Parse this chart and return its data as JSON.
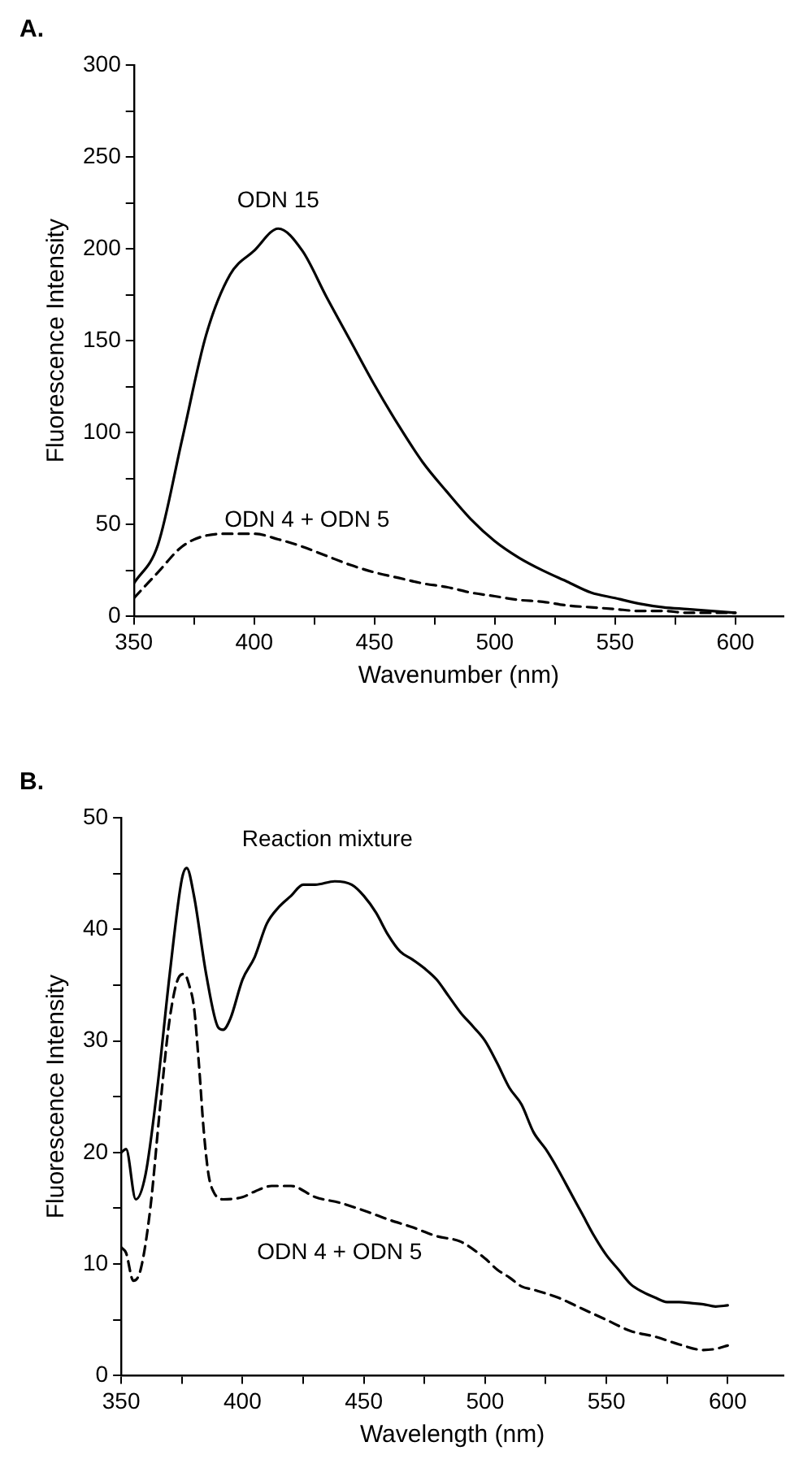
{
  "chart_data": [
    {
      "type": "line",
      "title": "A.",
      "xlabel": "Wavenumber (nm)",
      "ylabel": "Fluorescence Intensity",
      "xlim": [
        350,
        620
      ],
      "ylim": [
        0,
        300
      ],
      "xticks": [
        350,
        {
          "value": 375,
          "label": null
        },
        400,
        {
          "value": 425,
          "label": null
        },
        450,
        {
          "value": 475,
          "label": null
        },
        500,
        {
          "value": 525,
          "label": null
        },
        550,
        {
          "value": 575,
          "label": null
        },
        600
      ],
      "yticks": [
        0,
        {
          "value": 25,
          "label": null
        },
        50,
        {
          "value": 75,
          "label": null
        },
        100,
        {
          "value": 125,
          "label": null
        },
        150,
        {
          "value": 175,
          "label": null
        },
        200,
        {
          "value": 225,
          "label": null
        },
        250,
        {
          "value": 275,
          "label": null
        },
        300
      ],
      "grid": false,
      "legend": false,
      "marker": "none",
      "series": [
        {
          "name": "ODN 15",
          "color": "#000000",
          "line_style": "solid",
          "x": [
            350,
            360,
            370,
            380,
            390,
            400,
            410,
            420,
            430,
            440,
            450,
            460,
            470,
            480,
            490,
            500,
            510,
            520,
            530,
            540,
            550,
            560,
            570,
            580,
            590,
            600
          ],
          "values": [
            18,
            39,
            96,
            153,
            186,
            199,
            211,
            199,
            174,
            150,
            126,
            104,
            84,
            68,
            53,
            41,
            32,
            25,
            19,
            13,
            10,
            7,
            5,
            4,
            3,
            2
          ]
        },
        {
          "name": "ODN 4 + ODN 5",
          "color": "#000000",
          "line_style": "dashed",
          "x": [
            350,
            360,
            370,
            380,
            390,
            400,
            410,
            420,
            430,
            440,
            450,
            460,
            470,
            480,
            490,
            500,
            510,
            520,
            530,
            540,
            550,
            560,
            570,
            580,
            590,
            600
          ],
          "values": [
            10,
            24,
            38,
            44,
            45,
            45,
            42,
            38,
            33,
            28,
            24,
            21,
            18,
            16,
            13,
            11,
            9,
            8,
            6,
            5,
            4,
            3,
            3,
            2,
            2,
            2
          ]
        }
      ]
    },
    {
      "type": "line",
      "title": "B.",
      "xlabel": "Wavelength (nm)",
      "ylabel": "Fluorescence Intensity",
      "xlim": [
        350,
        623
      ],
      "ylim": [
        0,
        50
      ],
      "xticks": [
        350,
        {
          "value": 375,
          "label": null
        },
        400,
        {
          "value": 425,
          "label": null
        },
        450,
        {
          "value": 475,
          "label": null
        },
        500,
        {
          "value": 525,
          "label": null
        },
        550,
        {
          "value": 575,
          "label": null
        },
        600
      ],
      "yticks": [
        0,
        {
          "value": 5,
          "label": null
        },
        10,
        {
          "value": 15,
          "label": null
        },
        20,
        {
          "value": 25,
          "label": null
        },
        30,
        {
          "value": 35,
          "label": null
        },
        40,
        {
          "value": 45,
          "label": null
        },
        50
      ],
      "grid": false,
      "legend": false,
      "marker": "none",
      "series": [
        {
          "name": "Reaction mixture",
          "color": "#000000",
          "line_style": "solid",
          "x": [
            350,
            352,
            356,
            360,
            365,
            370,
            375,
            377,
            380,
            385,
            390,
            392,
            395,
            400,
            405,
            410,
            415,
            420,
            425,
            430,
            438,
            445,
            450,
            455,
            460,
            465,
            470,
            475,
            480,
            485,
            490,
            495,
            500,
            505,
            510,
            515,
            520,
            525,
            530,
            535,
            540,
            545,
            550,
            555,
            560,
            565,
            570,
            575,
            580,
            585,
            590,
            595,
            600
          ],
          "values": [
            20,
            20.3,
            15.8,
            18,
            26,
            36,
            44.5,
            45.5,
            43,
            36,
            31.2,
            31,
            32,
            35.5,
            37.5,
            40.5,
            42,
            43,
            44,
            44,
            44.3,
            44,
            43,
            41.5,
            39.5,
            38,
            37.3,
            36.5,
            35.5,
            34,
            32.5,
            31.3,
            30,
            28,
            25.8,
            24.3,
            21.8,
            20.3,
            18.5,
            16.5,
            14.5,
            12.5,
            10.8,
            9.5,
            8.2,
            7.5,
            7,
            6.6,
            6.6,
            6.5,
            6.4,
            6.2,
            6.3
          ]
        },
        {
          "name": "ODN 4 + ODN 5",
          "color": "#000000",
          "line_style": "dashed",
          "x": [
            350,
            352,
            355,
            358,
            362,
            366,
            370,
            374,
            376,
            378,
            380,
            382,
            384,
            386,
            388,
            392,
            400,
            405,
            412,
            420,
            430,
            440,
            450,
            460,
            470,
            480,
            490,
            500,
            505,
            510,
            515,
            520,
            530,
            540,
            550,
            560,
            570,
            580,
            590,
            595,
            600
          ],
          "values": [
            11.5,
            11,
            8.5,
            9.5,
            15,
            24,
            32,
            35.8,
            36,
            35,
            33,
            28,
            22,
            18,
            16.5,
            15.8,
            16,
            16.5,
            17,
            17,
            16,
            15.5,
            14.8,
            14,
            13.3,
            12.5,
            12,
            10.5,
            9.5,
            8.8,
            8,
            7.7,
            7,
            6,
            5,
            4,
            3.5,
            2.8,
            2.3,
            2.4,
            2.7
          ]
        }
      ]
    }
  ]
}
